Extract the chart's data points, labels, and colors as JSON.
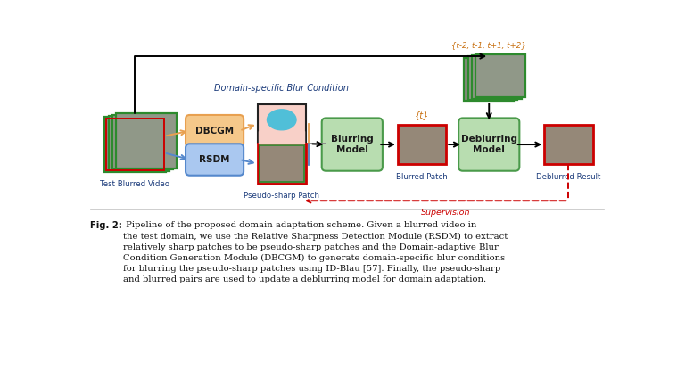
{
  "bg_color": "#ffffff",
  "fig_width": 7.59,
  "fig_height": 4.33,
  "dpi": 100,
  "green_border": "#2d8a2d",
  "red_border": "#cc0000",
  "orange_color": "#e8a050",
  "blue_color": "#5588cc",
  "box_orange_fill": "#f5c88a",
  "box_blue_fill": "#aac8f0",
  "blurring_fill": "#b8ddb0",
  "deblurring_fill": "#b8ddb0",
  "blurring_edge": "#4a9a4a",
  "frame_fill": "#8a8880",
  "frame_fill2": "#a09888",
  "pink_fill": "#f8d0c8",
  "supervision_color": "#cc0000",
  "label_color": "#1a3a7a",
  "t_label_color": "#c87010",
  "domain_label_color": "#1a3a7a",
  "caption_bold": "Fig. 2:",
  "caption_rest": " Pipeline of the proposed domain adaptation scheme. Given a blurred video in\nthe test domain, we use the Relative Sharpness Detection Module (RSDM) to extract\nrelatively sharp patches to be pseudo-sharp patches and the Domain-adaptive Blur\nCondition Generation Module (DBCGM) to generate domain-specific blur conditions\nfor blurring the pseudo-sharp patches using ID-Blau [57]. Finally, the pseudo-sharp\nand blurred pairs are used to update a deblurring model for domain adaptation.",
  "domain_text": "Domain-specific Blur Condition",
  "pseudo_text": "Pseudo-sharp Patch",
  "test_video_text": "Test Blurred Video",
  "blurred_patch_text": "Blurred Patch",
  "deblurred_text": "Deblurred Result",
  "supervision_text": "Supervision",
  "t_text": "{t}",
  "tref_text": "{t-2, t-1, t+1, t+2}"
}
